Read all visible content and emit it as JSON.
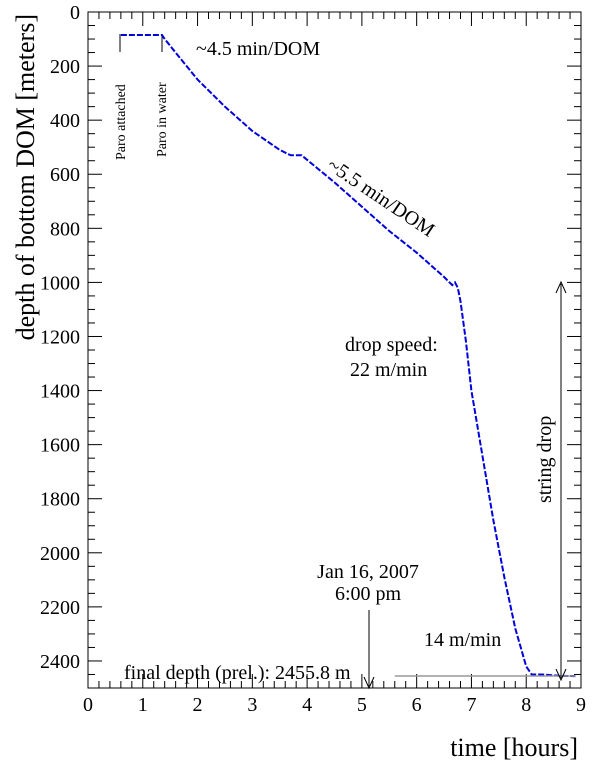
{
  "chart_data": {
    "type": "line",
    "title": "",
    "xlabel": "time [hours]",
    "ylabel": "depth of bottom DOM [meters]",
    "xlim": [
      0,
      9
    ],
    "ylim": [
      2500,
      0
    ],
    "y_inverted": true,
    "grid": false,
    "xticks": [
      "0",
      "1",
      "2",
      "3",
      "4",
      "5",
      "6",
      "7",
      "8",
      "9"
    ],
    "yticks": [
      "0",
      "200",
      "400",
      "600",
      "800",
      "1000",
      "1200",
      "1400",
      "1600",
      "1800",
      "2000",
      "2200",
      "2400"
    ],
    "series": [
      {
        "color": "#0000dd",
        "x": [
          0.6,
          1.05,
          1.35,
          1.4,
          1.6,
          2.0,
          2.5,
          3.0,
          3.5,
          3.7,
          3.9,
          4.5,
          5.0,
          5.5,
          6.0,
          6.5,
          6.6,
          6.65,
          6.7,
          6.75,
          6.8,
          6.9,
          7.0,
          7.2,
          7.4,
          7.6,
          7.8,
          8.0,
          8.1,
          8.3,
          8.6,
          8.9
        ],
        "y": [
          85,
          85,
          85,
          100,
          150,
          250,
          350,
          440,
          510,
          530,
          530,
          630,
          720,
          810,
          890,
          980,
          1000,
          1010,
          1000,
          1020,
          1070,
          1220,
          1400,
          1640,
          1880,
          2090,
          2280,
          2420,
          2450,
          2450,
          2455,
          2456
        ]
      }
    ],
    "final_depth_line": {
      "y": 2455.8,
      "x_start": 5.6,
      "x_end": 8.9,
      "color": "#999999"
    },
    "annotations": {
      "paro_attached": "Paro attached",
      "paro_in_water": "Paro in water",
      "rate1": "~4.5 min/DOM",
      "rate2": "~5.5 min/DOM",
      "drop_speed_l1": "drop speed:",
      "drop_speed_l2": "22 m/min",
      "date_l1": "Jan 16, 2007",
      "date_l2": "6:00 pm",
      "speed2": "14 m/min",
      "string_drop": "string drop",
      "final_depth": "final depth (prel.): 2455.8  m"
    }
  }
}
